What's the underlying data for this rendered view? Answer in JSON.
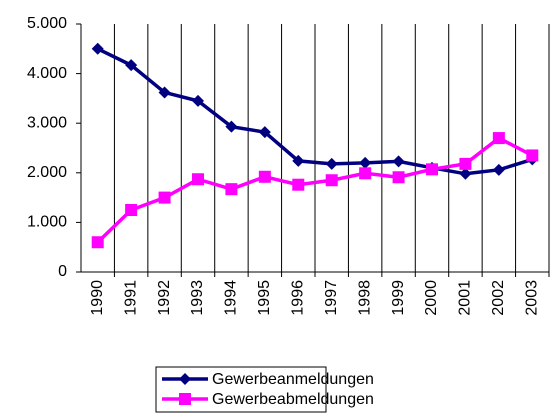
{
  "chart_data": {
    "type": "line",
    "categories": [
      "1990",
      "1991",
      "1992",
      "1993",
      "1994",
      "1995",
      "1996",
      "1997",
      "1998",
      "1999",
      "2000",
      "2001",
      "2002",
      "2003"
    ],
    "series": [
      {
        "name": "Gewerbeanmeldungen",
        "color": "#000080",
        "marker": "diamond",
        "values": [
          4500,
          4170,
          3620,
          3450,
          2930,
          2820,
          2240,
          2180,
          2200,
          2230,
          2100,
          1980,
          2060,
          2270
        ]
      },
      {
        "name": "Gewerbeabmeldungen",
        "color": "#ff00ff",
        "marker": "square",
        "values": [
          600,
          1250,
          1500,
          1870,
          1670,
          1920,
          1760,
          1850,
          1990,
          1910,
          2070,
          2180,
          2700,
          2350
        ]
      }
    ],
    "ylim": [
      0,
      5000
    ],
    "yticks": [
      0,
      {
        "value": 1000,
        "label": "1.000"
      },
      {
        "value": 2000,
        "label": "2.000"
      },
      {
        "value": 3000,
        "label": "3.000"
      },
      {
        "value": 4000,
        "label": "4.000"
      },
      {
        "value": 5000,
        "label": "5.000"
      }
    ],
    "grid": "x",
    "legend": "bottom"
  }
}
